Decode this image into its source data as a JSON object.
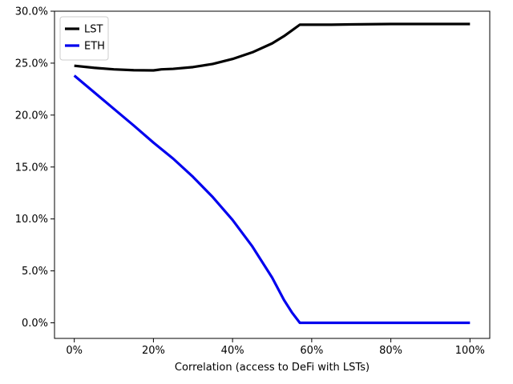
{
  "chart_data": {
    "type": "line",
    "xlabel": "Correlation (access to DeFi with LSTs)",
    "ylabel": "",
    "xlim": [
      -0.05,
      1.05
    ],
    "ylim": [
      -0.015,
      0.3
    ],
    "x_ticks": [
      0,
      0.2,
      0.4,
      0.6,
      0.8,
      1.0
    ],
    "x_tick_labels": [
      "0%",
      "20%",
      "40%",
      "60%",
      "80%",
      "100%"
    ],
    "y_ticks": [
      0,
      0.05,
      0.1,
      0.15,
      0.2,
      0.25,
      0.3
    ],
    "y_tick_labels": [
      "0.0%",
      "5.0%",
      "10.0%",
      "15.0%",
      "20.0%",
      "25.0%",
      "30.0%"
    ],
    "grid": false,
    "legend_position": "top-left",
    "series": [
      {
        "name": "LST",
        "color": "#000000",
        "x": [
          0,
          0.05,
          0.1,
          0.15,
          0.2,
          0.21,
          0.22,
          0.25,
          0.3,
          0.35,
          0.4,
          0.45,
          0.5,
          0.53,
          0.55,
          0.57,
          0.6,
          0.65,
          0.7,
          0.8,
          0.9,
          1.0
        ],
        "y": [
          0.2475,
          0.2455,
          0.244,
          0.2432,
          0.243,
          0.2435,
          0.244,
          0.2445,
          0.2462,
          0.2492,
          0.254,
          0.2604,
          0.269,
          0.276,
          0.2815,
          0.287,
          0.287,
          0.287,
          0.2873,
          0.2877,
          0.2877,
          0.2877
        ]
      },
      {
        "name": "ETH",
        "color": "#0000ee",
        "x": [
          0,
          0.05,
          0.1,
          0.15,
          0.2,
          0.25,
          0.3,
          0.35,
          0.4,
          0.45,
          0.5,
          0.53,
          0.55,
          0.57,
          0.6,
          0.7,
          0.8,
          0.9,
          1.0
        ],
        "y": [
          0.238,
          0.222,
          0.206,
          0.19,
          0.1735,
          0.158,
          0.1405,
          0.121,
          0.099,
          0.0735,
          0.0435,
          0.022,
          0.01,
          0.0,
          0.0,
          0.0,
          0.0,
          0.0,
          0.0
        ]
      }
    ]
  }
}
